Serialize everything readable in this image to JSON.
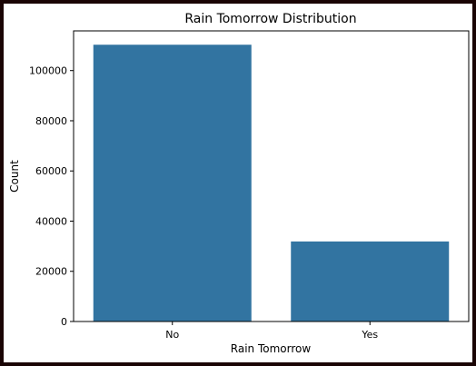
{
  "chart_data": {
    "type": "bar",
    "title": "Rain Tomorrow Distribution",
    "xlabel": "Rain Tomorrow",
    "ylabel": "Count",
    "categories": [
      "No",
      "Yes"
    ],
    "values": [
      110300,
      31900
    ],
    "ylim": [
      0,
      115820
    ],
    "yticks": [
      0,
      20000,
      40000,
      60000,
      80000,
      100000
    ],
    "ytick_labels": [
      "0",
      "20000",
      "40000",
      "60000",
      "80000",
      "100000"
    ],
    "grid": false,
    "bar_color": "#3274a1"
  }
}
